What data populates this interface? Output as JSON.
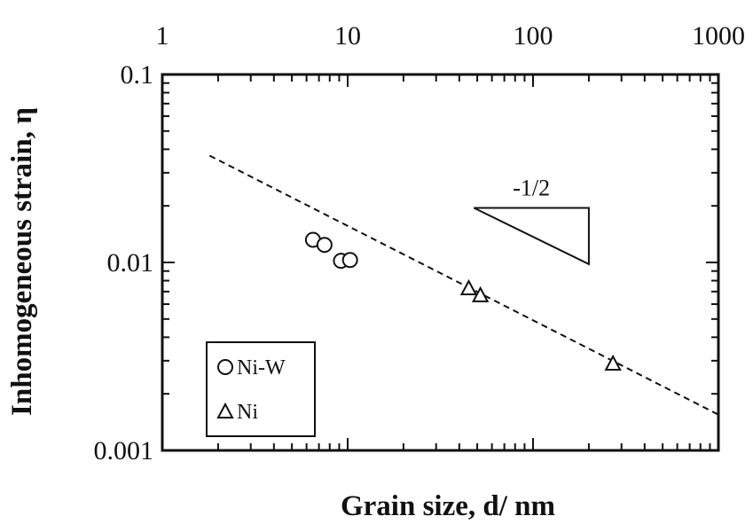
{
  "chart_data": {
    "type": "scatter",
    "xlabel": "Grain size, d/ nm",
    "ylabel": "Inhomogeneous strain, η",
    "xscale": "log",
    "yscale": "log",
    "xlim": [
      1,
      1000
    ],
    "ylim": [
      0.001,
      0.1
    ],
    "x_ticks": [
      {
        "value": 1,
        "label": "1"
      },
      {
        "value": 10,
        "label": "10"
      },
      {
        "value": 100,
        "label": "100"
      },
      {
        "value": 1000,
        "label": "1000"
      }
    ],
    "y_ticks": [
      {
        "value": 0.001,
        "label": "0.001"
      },
      {
        "value": 0.01,
        "label": "0.01"
      },
      {
        "value": 0.1,
        "label": "0.1"
      }
    ],
    "x_tick_position": "top",
    "grid": false,
    "legend_position": "bottom-left",
    "series": [
      {
        "name": "Ni-W",
        "marker": "circle",
        "x": [
          6.5,
          7.5,
          9.2,
          10.3
        ],
        "y": [
          0.0132,
          0.0124,
          0.0102,
          0.0103
        ]
      },
      {
        "name": "Ni",
        "marker": "triangle",
        "x": [
          45,
          52,
          270
        ],
        "y": [
          0.0073,
          0.0067,
          0.0029
        ]
      }
    ],
    "fit_line": {
      "style": "dashed",
      "x": [
        1.8,
        1000
      ],
      "y": [
        0.037,
        0.00155
      ]
    },
    "annotations": [
      {
        "text": "-1/2",
        "type": "slope-triangle",
        "x": [
          48,
          200
        ],
        "y": [
          0.0195,
          0.0098
        ]
      }
    ]
  }
}
